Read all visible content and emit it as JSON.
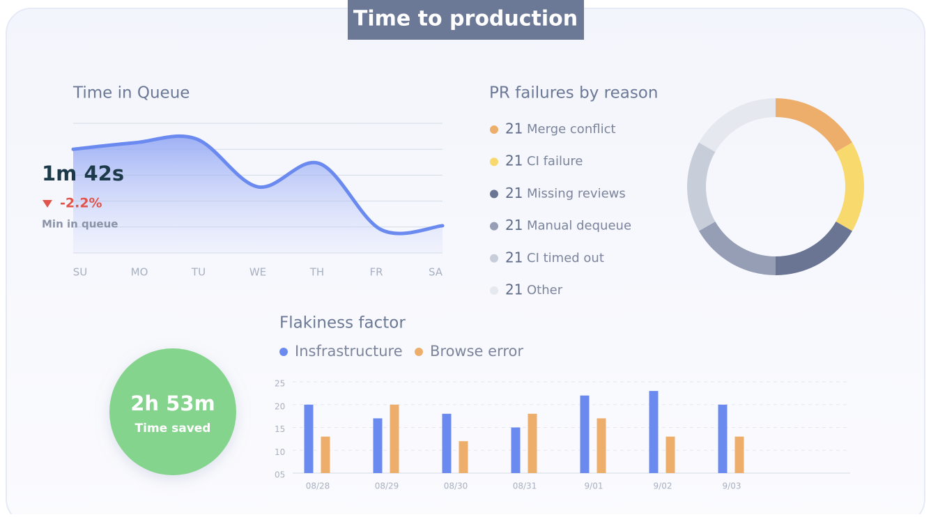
{
  "title": "Time to production",
  "queue_stat": {
    "value": "1m 42s",
    "change": "-2.2%",
    "label": "Min in queue"
  },
  "time_saved": {
    "value": "2h 53m",
    "label": "Time saved"
  },
  "chart_data": [
    {
      "type": "area",
      "title": "Time in Queue",
      "categories": [
        "SU",
        "MO",
        "TU",
        "WE",
        "TH",
        "FR",
        "SA"
      ],
      "values": [
        4.0,
        4.25,
        4.4,
        2.55,
        3.45,
        0.9,
        1.05
      ],
      "color": "#6b8af0",
      "ylim": [
        0,
        5
      ]
    },
    {
      "type": "pie",
      "title": "PR failures by reason",
      "categories": [
        "Merge conflict",
        "CI failure",
        "Missing reviews",
        "Manual dequeue",
        "CI timed out",
        "Other"
      ],
      "values": [
        21,
        21,
        21,
        21,
        21,
        21
      ],
      "colors": [
        "#eeae6b",
        "#f7d96e",
        "#6a7594",
        "#959eb4",
        "#c8cdda",
        "#e6e8ef"
      ]
    },
    {
      "type": "bar",
      "title": "Flakiness factor",
      "categories": [
        "08/28",
        "08/29",
        "08/30",
        "08/31",
        "9/01",
        "9/02",
        "9/03"
      ],
      "series": [
        {
          "name": "Insfrastructure",
          "color": "#6b8af0",
          "values": [
            20,
            17,
            18,
            15,
            22,
            23,
            20
          ]
        },
        {
          "name": "Browse error",
          "color": "#eeae6b",
          "values": [
            13,
            20,
            12,
            18,
            17,
            13,
            13
          ]
        }
      ],
      "ylim": [
        5,
        25
      ],
      "yticks": [
        25,
        20,
        15,
        10,
        {
          "value": 5,
          "label": "05"
        }
      ],
      "grid": true
    }
  ]
}
